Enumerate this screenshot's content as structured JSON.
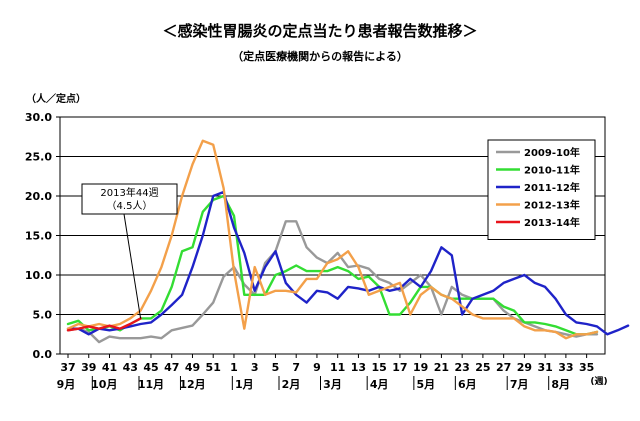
{
  "chart_data": {
    "type": "line",
    "title": "＜感染性胃腸炎の定点当たり患者報告数推移＞",
    "subtitle": "（定点医療機関からの報告による）",
    "ylabel": "（人／定点）",
    "xlabel": "",
    "ylim": [
      0,
      30
    ],
    "y_ticks": [
      "0.0",
      "5.0",
      "10.0",
      "15.0",
      "20.0",
      "25.0",
      "30.0"
    ],
    "grid": "horizontal",
    "legend_position": "top-right",
    "week_ticks": [
      "37",
      "39",
      "41",
      "43",
      "45",
      "47",
      "49",
      "51",
      "1",
      "3",
      "5",
      "7",
      "9",
      "11",
      "13",
      "15",
      "17",
      "19",
      "21",
      "23",
      "25",
      "27",
      "29",
      "31",
      "33",
      "35"
    ],
    "week_unit_label": "(週)",
    "month_labels": [
      {
        "label": "9月",
        "week_index": 0
      },
      {
        "label": "10月",
        "week_index": 3.5
      },
      {
        "label": "11月",
        "week_index": 8
      },
      {
        "label": "12月",
        "week_index": 12
      },
      {
        "label": "1月",
        "week_index": 17
      },
      {
        "label": "2月",
        "week_index": 21.5
      },
      {
        "label": "3月",
        "week_index": 25.5
      },
      {
        "label": "4月",
        "week_index": 30
      },
      {
        "label": "5月",
        "week_index": 34.5
      },
      {
        "label": "6月",
        "week_index": 38.5
      },
      {
        "label": "7月",
        "week_index": 43.5
      },
      {
        "label": "8月",
        "week_index": 47.5
      }
    ],
    "annotation": {
      "line1": "2013年44週",
      "line2": "（4.5人）",
      "week_index": 7,
      "value": 4.5
    },
    "series": [
      {
        "name": "2009-10年",
        "color": "#999999",
        "values": [
          3.0,
          3.2,
          2.8,
          1.5,
          2.2,
          2.0,
          2.0,
          2.0,
          2.2,
          2.0,
          3.0,
          3.3,
          3.6,
          5.0,
          6.5,
          9.8,
          11.0,
          8.8,
          7.5,
          11.5,
          13.0,
          16.8,
          16.8,
          13.5,
          12.2,
          11.5,
          12.8,
          11.0,
          11.2,
          10.8,
          9.5,
          9.0,
          8.0,
          9.0,
          10.0,
          8.5,
          5.0,
          8.5,
          7.5,
          7.0,
          7.0,
          7.0,
          5.5,
          4.5,
          4.0,
          3.5,
          3.0,
          2.8,
          2.5,
          2.2,
          2.5,
          2.5
        ]
      },
      {
        "name": "2010-11年",
        "color": "#33dd33",
        "values": [
          3.8,
          4.2,
          3.0,
          3.2,
          3.5,
          3.0,
          3.8,
          4.5,
          4.5,
          5.5,
          8.5,
          13.0,
          13.5,
          18.0,
          19.5,
          20.0,
          17.5,
          7.5,
          7.5,
          7.5,
          10.0,
          10.5,
          11.2,
          10.5,
          10.5,
          10.5,
          11.0,
          10.5,
          9.5,
          9.8,
          8.5,
          5.0,
          5.0,
          6.5,
          8.5,
          8.5,
          7.5,
          7.0,
          7.0,
          7.0,
          7.0,
          7.0,
          6.0,
          5.5,
          4.0,
          4.0,
          3.8,
          3.5,
          3.0,
          2.5,
          2.5,
          2.8
        ]
      },
      {
        "name": "2011-12年",
        "color": "#1f23c8",
        "values": [
          3.2,
          3.2,
          2.5,
          3.2,
          3.0,
          3.2,
          3.5,
          3.8,
          4.0,
          5.0,
          6.2,
          7.5,
          11.0,
          15.0,
          20.0,
          20.5,
          16.0,
          12.8,
          8.0,
          11.0,
          13.0,
          9.0,
          7.5,
          6.5,
          8.0,
          7.8,
          7.0,
          8.5,
          8.3,
          8.0,
          8.5,
          8.0,
          8.3,
          9.5,
          8.5,
          10.5,
          13.5,
          12.5,
          5.0,
          7.0,
          7.5,
          8.0,
          9.0,
          9.5,
          10.0,
          9.0,
          8.5,
          7.0,
          5.0,
          4.0,
          3.8,
          3.5,
          2.5,
          3.0,
          3.6
        ]
      },
      {
        "name": "2012-13年",
        "color": "#f3a04a",
        "values": [
          3.2,
          3.8,
          3.5,
          3.8,
          3.5,
          3.8,
          4.5,
          5.5,
          8.0,
          11.0,
          15.0,
          20.0,
          24.0,
          27.0,
          26.5,
          21.0,
          10.5,
          3.2,
          11.0,
          7.5,
          8.0,
          8.0,
          7.8,
          9.5,
          9.5,
          11.5,
          12.0,
          13.0,
          11.0,
          7.5,
          8.0,
          8.5,
          9.0,
          5.0,
          7.5,
          8.5,
          7.5,
          7.0,
          6.0,
          5.0,
          4.5,
          4.5,
          4.5,
          4.5,
          3.5,
          3.0,
          3.0,
          2.8,
          2.0,
          2.5,
          2.5,
          2.8
        ]
      },
      {
        "name": "2013-14年",
        "color": "#e8141b",
        "values": [
          3.0,
          3.2,
          3.5,
          3.2,
          3.6,
          3.2,
          3.8,
          4.5
        ]
      }
    ]
  }
}
